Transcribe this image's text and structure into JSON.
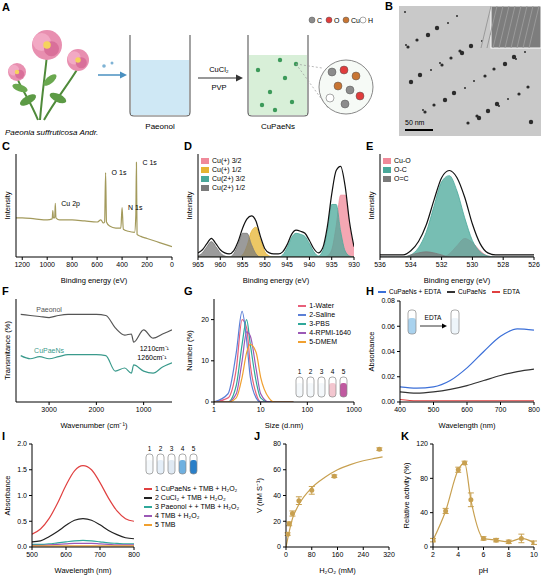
{
  "diagram": {
    "panel": "A",
    "source_label": "Paeonia suffruticosa Andr.",
    "step_labels": [
      "Paeonol",
      "CuPaeNs"
    ],
    "reagents": [
      "CuCl₂",
      "PVP"
    ],
    "atoms": [
      "C",
      "O",
      "Cu",
      "H"
    ]
  },
  "image": {
    "panel": "B",
    "scale_bar": "50 nm"
  },
  "chart_data": [
    {
      "panel": "C",
      "type": "line",
      "xlabel": "Binding energy (eV)",
      "ylabel": "Intensity",
      "tick_labels": "x",
      "x": [
        1250,
        1200,
        1100,
        1000,
        960,
        955,
        950,
        940,
        935,
        930,
        900,
        800,
        700,
        600,
        570,
        550,
        540,
        532,
        525,
        500,
        450,
        410,
        400,
        390,
        350,
        300,
        290,
        285,
        280,
        250,
        200,
        150,
        100,
        50,
        0
      ],
      "series": [
        {
          "color": "#a39a5c",
          "values": [
            38,
            38,
            37,
            36,
            37,
            45,
            38,
            38,
            52,
            38,
            36,
            36,
            35,
            34,
            36,
            33,
            34,
            82,
            34,
            30,
            28,
            28,
            48,
            27,
            25,
            24,
            40,
            92,
            22,
            20,
            18,
            16,
            14,
            12,
            10
          ]
        }
      ],
      "xlim": [
        1250,
        0
      ],
      "xticks": [
        1200,
        1000,
        800,
        600,
        400,
        200,
        0
      ],
      "ylim": [
        0,
        100
      ],
      "annotations": [
        {
          "text": "Cu 2p",
          "x": 935,
          "y": 52
        },
        {
          "text": "O 1s",
          "x": 532,
          "y": 82
        },
        {
          "text": "N 1s",
          "x": 400,
          "y": 48
        },
        {
          "text": "C 1s",
          "x": 285,
          "y": 92
        }
      ]
    },
    {
      "panel": "D",
      "type": "line",
      "xlabel": "Binding energy (eV)",
      "ylabel": "Intensity",
      "tick_labels": "x",
      "legend": "top-left",
      "x": [
        930,
        931,
        932,
        933,
        934,
        935,
        936,
        937,
        938,
        939,
        940,
        941,
        942,
        943,
        944,
        945,
        946,
        947,
        948,
        949,
        950,
        951,
        952,
        953,
        954,
        955,
        956,
        957,
        958,
        959,
        960,
        961,
        962,
        963,
        964,
        965
      ],
      "series": [
        {
          "name": "Cu(+) 3/2",
          "type": "area",
          "color": "#f08a9a",
          "values": [
            7,
            30,
            60,
            60,
            30,
            7,
            1,
            0,
            0,
            0,
            0,
            0,
            0,
            0,
            0,
            0,
            0,
            0,
            0,
            0,
            0,
            0,
            0,
            0,
            0,
            0,
            0,
            0,
            0,
            0,
            0,
            0,
            0,
            0,
            0,
            0
          ]
        },
        {
          "name": "Cu(+) 1/2",
          "type": "area",
          "color": "#e6b432",
          "values": [
            0,
            0,
            0,
            0,
            0,
            0,
            0,
            0,
            0,
            0,
            0,
            0,
            0,
            0,
            0,
            0,
            0,
            0,
            0,
            1,
            5,
            17,
            29,
            25,
            11,
            2,
            0,
            0,
            0,
            0,
            0,
            0,
            0,
            0,
            0,
            0
          ]
        },
        {
          "name": "Cu(2+) 3/2",
          "type": "area",
          "color": "#4aa89a",
          "values": [
            0,
            1,
            6,
            25,
            51,
            51,
            25,
            6,
            1,
            5,
            13,
            20,
            22,
            23,
            19,
            9,
            2,
            0,
            0,
            0,
            0,
            0,
            0,
            0,
            0,
            0,
            0,
            0,
            0,
            0,
            0,
            0,
            0,
            0,
            0,
            0
          ]
        },
        {
          "name": "Cu(2+) 1/2",
          "type": "area",
          "color": "#7a7a7a",
          "values": [
            0,
            0,
            0,
            0,
            0,
            0,
            0,
            0,
            0,
            0,
            0,
            0,
            0,
            0,
            0,
            0,
            0,
            0,
            0,
            0,
            0,
            0,
            3,
            12,
            23,
            23,
            12,
            3,
            0,
            1,
            4,
            10,
            15,
            10,
            4,
            1
          ]
        },
        {
          "type": "line",
          "color": "#111111",
          "values": [
            10,
            34,
            69,
            88,
            84,
            61,
            29,
            9,
            4,
            8,
            16,
            23,
            25,
            26,
            22,
            12,
            5,
            3,
            3,
            4,
            8,
            20,
            35,
            40,
            37,
            28,
            15,
            6,
            3,
            4,
            7,
            13,
            18,
            13,
            7,
            4
          ]
        }
      ],
      "xlim": [
        965,
        930
      ],
      "xticks": [
        965,
        960,
        955,
        950,
        945,
        940,
        935,
        930
      ],
      "ylim": [
        0,
        100
      ]
    },
    {
      "panel": "E",
      "type": "line",
      "xlabel": "Binding energy (eV)",
      "ylabel": "Intensity",
      "tick_labels": "x",
      "legend": "top-left",
      "x": [
        526,
        526.5,
        527,
        527.5,
        528,
        528.5,
        529,
        529.5,
        530,
        530.5,
        531,
        531.5,
        532,
        532.5,
        533,
        533.5,
        534,
        534.5,
        535,
        535.5,
        536
      ],
      "series": [
        {
          "name": "Cu-O",
          "type": "area",
          "color": "#f08a9a",
          "values": [
            0,
            0,
            0,
            0,
            0,
            0,
            1,
            6,
            14,
            18,
            11,
            3,
            0,
            0,
            0,
            0,
            0,
            0,
            0,
            0,
            0
          ]
        },
        {
          "name": "O-C",
          "type": "area",
          "color": "#4aa89a",
          "values": [
            0,
            0,
            0,
            0,
            0,
            0,
            1,
            5,
            16,
            38,
            64,
            79,
            73,
            49,
            24,
            9,
            2,
            0,
            0,
            0,
            0
          ]
        },
        {
          "name": "O=C",
          "type": "area",
          "color": "#7a7a7a",
          "values": [
            0,
            0,
            0,
            0,
            0,
            0,
            0,
            0,
            0,
            0,
            0,
            0,
            2,
            4,
            5,
            4,
            2,
            0,
            0,
            0,
            0
          ]
        },
        {
          "type": "line",
          "color": "#111111",
          "values": [
            2,
            2,
            2,
            2,
            2,
            2,
            4,
            13,
            32,
            58,
            77,
            84,
            77,
            55,
            31,
            15,
            6,
            2,
            2,
            2,
            2
          ]
        }
      ],
      "xlim": [
        536,
        526
      ],
      "xticks": [
        536,
        534,
        532,
        530,
        528,
        526
      ],
      "ylim": [
        0,
        100
      ]
    },
    {
      "panel": "F",
      "type": "line",
      "xlabel": "Wavenumber (cm⁻¹)",
      "ylabel": "Transmitance (%)",
      "tick_labels": "x",
      "legend": "inline",
      "x": [
        3600,
        3400,
        3200,
        3000,
        2800,
        2600,
        2400,
        2200,
        2000,
        1800,
        1600,
        1400,
        1260,
        1210,
        1000,
        800,
        600,
        400
      ],
      "series": [
        {
          "name": "Paeonol",
          "color": "#555555",
          "values": [
            85,
            84,
            83,
            82,
            84,
            85,
            85,
            85,
            85,
            84,
            72,
            65,
            66,
            58,
            70,
            62,
            66,
            70
          ]
        },
        {
          "name": "CuPaeNs",
          "color": "#3a9a8c",
          "values": [
            45,
            42,
            44,
            42,
            44,
            46,
            46,
            46,
            46,
            45,
            30,
            33,
            28,
            36,
            30,
            28,
            34,
            38
          ]
        }
      ],
      "xlim": [
        3700,
        400
      ],
      "xticks": [
        3000,
        2000,
        1000
      ],
      "ylim": [
        0,
        100
      ],
      "annotations": [
        {
          "text": "1210cm⁻¹",
          "x": 1210,
          "y": 52
        },
        {
          "text": "1260cm⁻¹",
          "x": 1260,
          "y": 43
        }
      ]
    },
    {
      "panel": "G",
      "type": "line",
      "xlabel": "Size (d.nm)",
      "ylabel": "Number (%)",
      "log": "x",
      "legend": "top-right",
      "inset_labels": [
        "1",
        "2",
        "3",
        "4",
        "5"
      ],
      "x": [
        1,
        2,
        3,
        4,
        5,
        6,
        8,
        10,
        15,
        20,
        50
      ],
      "series": [
        {
          "name": "1-Water",
          "color": "#e8607a",
          "values": [
            0,
            1,
            8,
            20,
            18,
            9,
            2,
            0,
            0,
            0,
            0
          ]
        },
        {
          "name": "2-Saline",
          "color": "#5b7fd6",
          "values": [
            0,
            2,
            12,
            22,
            15,
            6,
            1,
            0,
            0,
            0,
            0
          ]
        },
        {
          "name": "3-PBS",
          "color": "#2fa89a",
          "values": [
            0,
            0,
            4,
            14,
            20,
            14,
            5,
            1,
            0,
            0,
            0
          ]
        },
        {
          "name": "4-RPMI-1640",
          "color": "#9b59b6",
          "values": [
            0,
            0,
            2,
            10,
            17,
            16,
            8,
            2,
            0,
            0,
            0
          ]
        },
        {
          "name": "5-DMEM",
          "color": "#f0a030",
          "values": [
            0,
            0,
            1,
            6,
            12,
            14,
            12,
            6,
            1,
            0,
            0
          ]
        }
      ],
      "xlim": [
        1,
        1000
      ],
      "xticks": [
        1,
        10,
        100,
        1000
      ],
      "ylim": [
        0,
        25
      ],
      "yticks": [
        0,
        10,
        20
      ]
    },
    {
      "panel": "H",
      "type": "line",
      "xlabel": "Wavelength (nm)",
      "ylabel": "Absorbance",
      "legend": "top",
      "inset_label": "EDTA",
      "x": [
        400,
        450,
        500,
        550,
        600,
        650,
        700,
        750,
        800
      ],
      "series": [
        {
          "name": "CuPaeNs + EDTA",
          "color": "#3b6fd8",
          "values": [
            0.012,
            0.011,
            0.012,
            0.017,
            0.027,
            0.04,
            0.052,
            0.058,
            0.057
          ]
        },
        {
          "name": "CuPaeNs",
          "color": "#333333",
          "values": [
            0.008,
            0.007,
            0.008,
            0.01,
            0.013,
            0.017,
            0.021,
            0.024,
            0.026
          ]
        },
        {
          "name": "EDTA",
          "color": "#e04040",
          "values": [
            0.002,
            0.001,
            0.001,
            0.001,
            0.001,
            0.001,
            0.001,
            0.001,
            0.001
          ]
        }
      ],
      "xlim": [
        400,
        800
      ],
      "xticks": [
        400,
        500,
        600,
        700,
        800
      ],
      "ylim": [
        0,
        0.08
      ],
      "yticks": [
        {
          "value": 0,
          "label": "0.00"
        },
        {
          "value": 0.02,
          "label": "0.02"
        },
        {
          "value": 0.04,
          "label": "0.04"
        },
        {
          "value": 0.06,
          "label": "0.06"
        },
        {
          "value": 0.08,
          "label": "0.08"
        }
      ]
    },
    {
      "panel": "I",
      "type": "line",
      "xlabel": "Wavelength (nm)",
      "ylabel": "Absorbance",
      "legend": "right",
      "inset_labels": [
        "1",
        "2",
        "3",
        "4",
        "5"
      ],
      "x": [
        500,
        525,
        550,
        575,
        600,
        625,
        650,
        675,
        700,
        725,
        750,
        775,
        800
      ],
      "series": [
        {
          "name": "1 CuPaeNs + TMB + H₂O₂",
          "color": "#e04040",
          "values": [
            0.25,
            0.35,
            0.55,
            0.85,
            1.2,
            1.48,
            1.58,
            1.5,
            1.25,
            0.95,
            0.7,
            0.55,
            0.5
          ]
        },
        {
          "name": "2 CuCl₂ + TMB + H₂O₂",
          "color": "#222222",
          "values": [
            0.1,
            0.12,
            0.2,
            0.3,
            0.42,
            0.52,
            0.55,
            0.52,
            0.43,
            0.32,
            0.24,
            0.18,
            0.16
          ]
        },
        {
          "name": "3 Paeonol + + TMB + H₂O₂",
          "color": "#2fa89a",
          "values": [
            0.05,
            0.05,
            0.06,
            0.08,
            0.1,
            0.12,
            0.13,
            0.12,
            0.1,
            0.08,
            0.07,
            0.06,
            0.06
          ]
        },
        {
          "name": "4 TMB + H₂O₂",
          "color": "#9b59b6",
          "values": [
            0.03,
            0.03,
            0.04,
            0.05,
            0.06,
            0.07,
            0.07,
            0.07,
            0.06,
            0.05,
            0.04,
            0.04,
            0.04
          ]
        },
        {
          "name": "5 TMB",
          "color": "#f0a030",
          "values": [
            0.02,
            0.02,
            0.02,
            0.02,
            0.02,
            0.02,
            0.02,
            0.02,
            0.02,
            0.02,
            0.02,
            0.02,
            0.02
          ]
        }
      ],
      "xlim": [
        500,
        800
      ],
      "xticks": [
        500,
        600,
        700,
        800
      ],
      "ylim": [
        0,
        2
      ],
      "yticks": [
        {
          "value": 0,
          "label": "0.0"
        },
        0.5,
        {
          "value": 1,
          "label": "1.0"
        },
        1.5,
        {
          "value": 2,
          "label": "2.0"
        }
      ]
    },
    {
      "panel": "J",
      "type": "scatter",
      "xlabel": "H₂O₂ (mM)",
      "ylabel": "V (nM S⁻¹)",
      "series": [
        {
          "type": "scatter",
          "marker": "circle",
          "color": "#c8a050",
          "x": [
            5,
            10,
            20,
            40,
            80,
            150,
            290
          ],
          "values": [
            10,
            18,
            26,
            36,
            44,
            55,
            76
          ],
          "errors": [
            1,
            1.5,
            2,
            3,
            3,
            1,
            1
          ]
        },
        {
          "type": "line",
          "color": "#c8a050",
          "x": [
            0,
            20,
            40,
            80,
            120,
            160,
            200,
            240,
            280,
            300
          ],
          "values": [
            0,
            22,
            33,
            46,
            54,
            60,
            64,
            67,
            69,
            70
          ]
        }
      ],
      "xlim": [
        0,
        320
      ],
      "xticks": [
        0,
        80,
        160,
        240,
        320
      ],
      "ylim": [
        0,
        80
      ],
      "yticks": [
        0,
        20,
        40,
        60,
        80
      ]
    },
    {
      "panel": "K",
      "type": "line",
      "xlabel": "pH",
      "ylabel": "Relative activity (%)",
      "x": [
        2,
        3,
        4,
        4.5,
        5,
        6,
        7,
        8,
        9,
        10
      ],
      "series": [
        {
          "marker": "circle",
          "color": "#c8a050",
          "values": [
            8,
            42,
            90,
            98,
            55,
            10,
            8,
            6,
            10,
            5
          ],
          "errors": [
            2,
            3,
            3,
            2,
            8,
            2,
            2,
            2,
            5,
            2
          ]
        }
      ],
      "xlim": [
        2,
        10
      ],
      "xticks": [
        2,
        4,
        6,
        8,
        10
      ],
      "ylim": [
        0,
        120
      ],
      "yticks": [
        0,
        40,
        80,
        120
      ]
    }
  ]
}
